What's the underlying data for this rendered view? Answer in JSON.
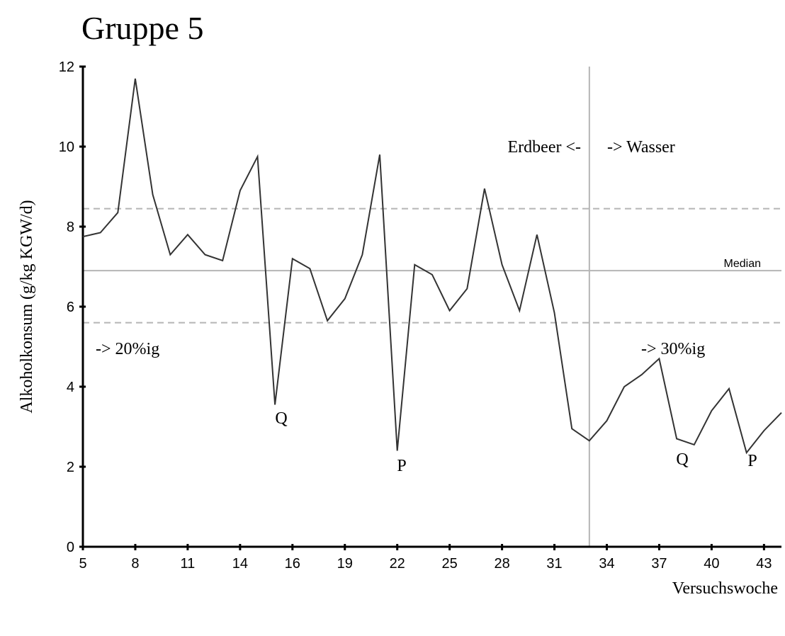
{
  "chart_data": {
    "type": "line",
    "title": "Gruppe 5",
    "y_label": "Alkoholkonsum (g/kg KGW/d)",
    "x_label": "Versuchswoche",
    "categories": [
      5,
      null,
      null,
      8,
      null,
      null,
      11,
      null,
      null,
      14,
      null,
      null,
      16,
      null,
      null,
      19,
      null,
      null,
      22,
      null,
      null,
      25,
      null,
      null,
      28,
      null,
      null,
      31,
      null,
      null,
      34,
      null,
      null,
      37,
      null,
      null,
      40,
      null,
      null,
      43,
      null
    ],
    "series": [
      {
        "name": "Gruppe 5",
        "color": "#333333",
        "values": [
          7.75,
          7.85,
          8.35,
          11.7,
          8.8,
          7.3,
          7.8,
          7.3,
          7.15,
          8.9,
          9.75,
          3.55,
          7.2,
          6.95,
          5.65,
          6.2,
          7.3,
          9.8,
          2.4,
          7.05,
          6.8,
          5.9,
          6.45,
          8.95,
          7.05,
          5.9,
          7.8,
          5.85,
          2.95,
          2.65,
          3.15,
          4.0,
          4.3,
          4.7,
          2.7,
          2.55,
          3.4,
          3.95,
          2.35,
          2.9,
          3.35
        ]
      }
    ],
    "ylim": [
      0,
      12
    ],
    "yticks": [
      0,
      2,
      4,
      6,
      8,
      10,
      12
    ],
    "hlines": [
      {
        "value": 8.45,
        "style": "dashed"
      },
      {
        "value": 6.9,
        "style": "solid"
      },
      {
        "value": 5.6,
        "style": "dashed"
      }
    ],
    "vline_at": 29,
    "annotations": [
      "Erdbeer <-",
      "-> Wasser",
      "Median",
      "-> 20%ig",
      "-> 30%ig",
      "Q",
      "P",
      "Q",
      "P"
    ]
  }
}
